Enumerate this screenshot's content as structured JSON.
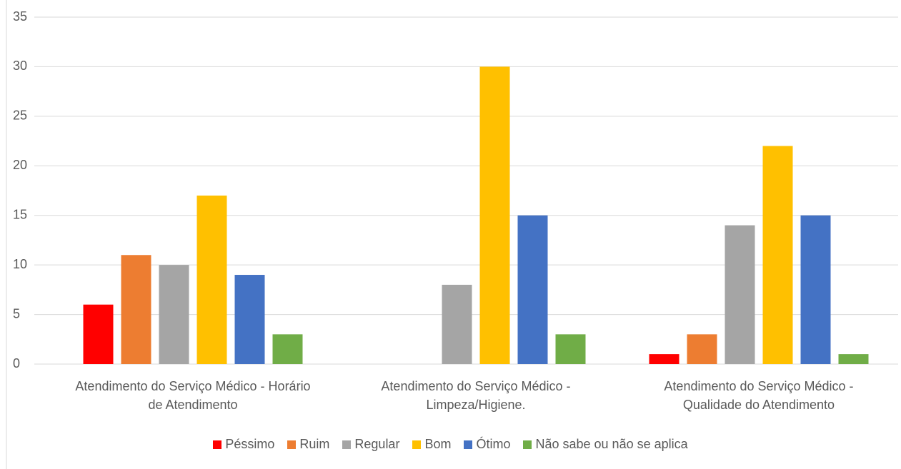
{
  "chart_data": {
    "type": "bar",
    "categories": [
      "Atendimento do Serviço Médico - Horário de Atendimento",
      "Atendimento do Serviço Médico - Limpeza/Higiene.",
      "Atendimento do Serviço Médico - Qualidade do Atendimento"
    ],
    "series": [
      {
        "name": "Péssimo",
        "color": "#ff0000",
        "values": [
          6,
          0,
          1
        ]
      },
      {
        "name": "Ruim",
        "color": "#ed7d31",
        "values": [
          11,
          0,
          3
        ]
      },
      {
        "name": "Regular",
        "color": "#a5a5a5",
        "values": [
          10,
          8,
          14
        ]
      },
      {
        "name": "Bom",
        "color": "#ffc000",
        "values": [
          17,
          30,
          22
        ]
      },
      {
        "name": "Ótimo",
        "color": "#4472c4",
        "values": [
          9,
          15,
          15
        ]
      },
      {
        "name": "Não sabe ou não se aplica",
        "color": "#70ad47",
        "values": [
          3,
          3,
          1
        ]
      }
    ],
    "ylim": [
      0,
      35
    ],
    "yticks": [
      0,
      5,
      10,
      15,
      20,
      25,
      30,
      35
    ],
    "grid": true,
    "legend": "bottom"
  }
}
